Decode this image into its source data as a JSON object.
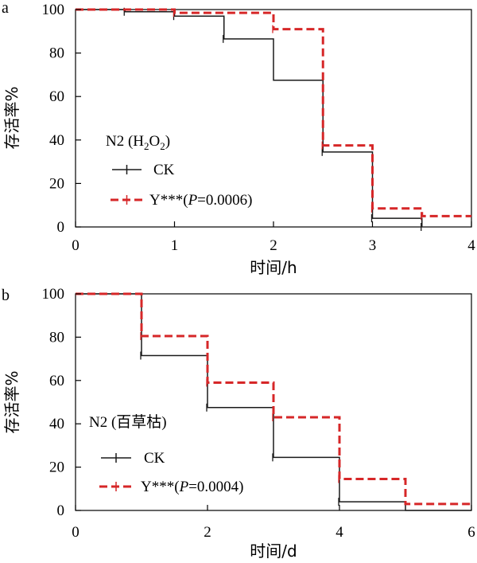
{
  "chart_data": [
    {
      "type": "line",
      "panel_label": "a",
      "xlabel": "时间/h",
      "ylabel": "存活率%",
      "xlim": [
        0,
        4
      ],
      "ylim": [
        0,
        100
      ],
      "xticks": [
        "0",
        "1",
        "2",
        "3",
        "4"
      ],
      "yticks": [
        "0",
        "20",
        "40",
        "60",
        "80",
        "100"
      ],
      "legend": {
        "title_main": "N2 (H",
        "title_sub1": "2",
        "title_mid": "O",
        "title_sub2": "2",
        "title_end": ")",
        "entries": [
          {
            "label": "CK"
          },
          {
            "label_pre": "Y***(",
            "label_var": "P",
            "label_post": "=0.0006)"
          }
        ]
      },
      "series": [
        {
          "name": "CK",
          "color": "#1a1a1a",
          "style": "solid",
          "points": [
            [
              0,
              100
            ],
            [
              0.5,
              99
            ],
            [
              1,
              97
            ],
            [
              1.5,
              86.5
            ],
            [
              2,
              67.5
            ],
            [
              2.5,
              34.5
            ],
            [
              3,
              4
            ],
            [
              3.5,
              0
            ]
          ],
          "censor_marks": [
            [
              0.5,
              99
            ],
            [
              1,
              97
            ],
            [
              1.5,
              86.5
            ],
            [
              2.5,
              34.5
            ],
            [
              3,
              4
            ],
            [
              3.5,
              0
            ]
          ]
        },
        {
          "name": "Y***",
          "color": "#d62728",
          "style": "dashed",
          "points": [
            [
              0,
              100
            ],
            [
              1,
              98.5
            ],
            [
              2,
              91
            ],
            [
              2.5,
              37.5
            ],
            [
              3,
              8.5
            ],
            [
              3.5,
              5
            ],
            [
              4,
              5
            ]
          ],
          "censor_marks": [
            [
              1,
              98.5
            ],
            [
              2,
              91
            ],
            [
              2.5,
              37.5
            ],
            [
              3,
              8.5
            ],
            [
              3.5,
              5
            ]
          ]
        }
      ]
    },
    {
      "type": "line",
      "panel_label": "b",
      "xlabel": "时间/d",
      "ylabel": "存活率%",
      "xlim": [
        0,
        6
      ],
      "ylim": [
        0,
        100
      ],
      "xticks": [
        "0",
        "2",
        "4",
        "6"
      ],
      "yticks": [
        "0",
        "20",
        "40",
        "60",
        "80",
        "100"
      ],
      "legend": {
        "title": "N2 (百草枯)",
        "entries": [
          {
            "label": "CK"
          },
          {
            "label_pre": "Y***(",
            "label_var": "P",
            "label_post": "=0.0004)"
          }
        ]
      },
      "series": [
        {
          "name": "CK",
          "color": "#1a1a1a",
          "style": "solid",
          "points": [
            [
              0,
              100
            ],
            [
              1,
              71.5
            ],
            [
              2,
              47.5
            ],
            [
              3,
              24.5
            ],
            [
              4,
              4
            ],
            [
              5,
              0
            ],
            [
              6,
              0
            ]
          ],
          "censor_marks": [
            [
              1,
              71.5
            ],
            [
              2,
              47.5
            ],
            [
              3,
              24.5
            ],
            [
              4,
              4
            ]
          ]
        },
        {
          "name": "Y***",
          "color": "#d62728",
          "style": "dashed",
          "points": [
            [
              0,
              100
            ],
            [
              1,
              80.5
            ],
            [
              2,
              59
            ],
            [
              3,
              43
            ],
            [
              4,
              14.5
            ],
            [
              5,
              3
            ],
            [
              6,
              3
            ]
          ],
          "censor_marks": [
            [
              1,
              80.5
            ],
            [
              2,
              59
            ],
            [
              3,
              43
            ],
            [
              4,
              14.5
            ]
          ]
        }
      ]
    }
  ]
}
